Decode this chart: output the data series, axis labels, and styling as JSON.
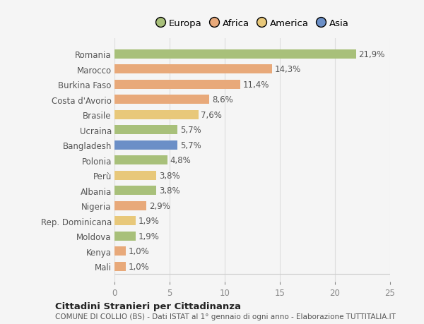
{
  "categories": [
    "Romania",
    "Marocco",
    "Burkina Faso",
    "Costa d'Avorio",
    "Brasile",
    "Ucraina",
    "Bangladesh",
    "Polonia",
    "Perù",
    "Albania",
    "Nigeria",
    "Rep. Dominicana",
    "Moldova",
    "Kenya",
    "Mali"
  ],
  "values": [
    21.9,
    14.3,
    11.4,
    8.6,
    7.6,
    5.7,
    5.7,
    4.8,
    3.8,
    3.8,
    2.9,
    1.9,
    1.9,
    1.0,
    1.0
  ],
  "labels": [
    "21,9%",
    "14,3%",
    "11,4%",
    "8,6%",
    "7,6%",
    "5,7%",
    "5,7%",
    "4,8%",
    "3,8%",
    "3,8%",
    "2,9%",
    "1,9%",
    "1,9%",
    "1,0%",
    "1,0%"
  ],
  "colors": [
    "#a8c07a",
    "#e8a97a",
    "#e8a97a",
    "#e8a97a",
    "#e8c87a",
    "#a8c07a",
    "#6b8fc7",
    "#a8c07a",
    "#e8c87a",
    "#a8c07a",
    "#e8a97a",
    "#e8c87a",
    "#a8c07a",
    "#e8a97a",
    "#e8a97a"
  ],
  "legend_labels": [
    "Europa",
    "Africa",
    "America",
    "Asia"
  ],
  "legend_colors": [
    "#a8c07a",
    "#e8a97a",
    "#e8c87a",
    "#6b8fc7"
  ],
  "xlim": [
    0,
    25
  ],
  "xticks": [
    0,
    5,
    10,
    15,
    20,
    25
  ],
  "title1": "Cittadini Stranieri per Cittadinanza",
  "title2": "COMUNE DI COLLIO (BS) - Dati ISTAT al 1° gennaio di ogni anno - Elaborazione TUTTITALIA.IT",
  "background_color": "#f5f5f5",
  "grid_color": "#dddddd",
  "bar_height": 0.6,
  "label_fontsize": 8.5,
  "ytick_fontsize": 8.5,
  "xtick_fontsize": 8.5,
  "legend_fontsize": 9.5,
  "title1_fontsize": 9.5,
  "title2_fontsize": 7.5
}
